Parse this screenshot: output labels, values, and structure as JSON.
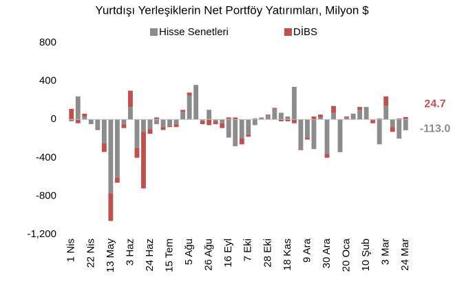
{
  "chart_data": {
    "type": "bar",
    "stacked": true,
    "title": "Yurtdışı Yerleşiklerin Net Portföy Yatırımları, Milyon $",
    "categories": [
      "1 Nis",
      null,
      null,
      "22 Nis",
      null,
      null,
      "13 May",
      null,
      null,
      "3 Haz",
      null,
      null,
      "24 Haz",
      null,
      null,
      "15 Tem",
      null,
      null,
      "5 Ağu",
      null,
      null,
      "26 Ağu",
      null,
      null,
      "16 Eyl",
      null,
      null,
      "7 Eki",
      null,
      null,
      "28 Eki",
      null,
      null,
      "18 Kas",
      null,
      null,
      "9 Ara",
      null,
      null,
      "30 Ara",
      null,
      null,
      "20 Oca",
      null,
      null,
      "10 Şub",
      null,
      null,
      "3 Mar",
      null,
      null,
      "24 Mar"
    ],
    "series": [
      {
        "name": "Hisse Senetleri",
        "color": "#8c8c8c",
        "values": [
          -20,
          240,
          30,
          -50,
          -100,
          -250,
          -770,
          -610,
          -50,
          130,
          -300,
          -130,
          -100,
          -50,
          -80,
          -70,
          -50,
          80,
          250,
          360,
          -20,
          100,
          -20,
          -40,
          -190,
          -280,
          -200,
          -160,
          -60,
          20,
          40,
          110,
          70,
          30,
          340,
          -310,
          -190,
          -310,
          20,
          -360,
          70,
          -330,
          20,
          60,
          100,
          130,
          -10,
          -260,
          140,
          -80,
          -200,
          -113.0
        ],
        "value_labels": [
          null,
          null,
          null,
          null,
          null,
          null,
          null,
          null,
          null,
          null,
          null,
          null,
          null,
          null,
          null,
          null,
          null,
          null,
          null,
          null,
          null,
          null,
          null,
          null,
          null,
          null,
          null,
          null,
          null,
          null,
          null,
          null,
          null,
          null,
          null,
          null,
          null,
          null,
          null,
          null,
          null,
          null,
          null,
          null,
          null,
          null,
          null,
          null,
          null,
          null,
          null,
          "-113.0"
        ]
      },
      {
        "name": "DİBS",
        "color": "#c0504d",
        "values": [
          110,
          -40,
          30,
          0,
          -10,
          -90,
          -290,
          -50,
          -40,
          170,
          -100,
          -590,
          -50,
          20,
          -30,
          -10,
          -30,
          20,
          30,
          0,
          -30,
          -60,
          -30,
          -50,
          20,
          20,
          -60,
          -20,
          10,
          0,
          10,
          10,
          -20,
          -20,
          -40,
          -10,
          -20,
          30,
          30,
          -40,
          70,
          -10,
          10,
          0,
          30,
          0,
          -30,
          10,
          100,
          -50,
          10,
          24.7
        ]
      }
    ],
    "ylim": [
      -1200,
      800
    ],
    "yticks": [
      {
        "value": -1200,
        "label": "-1,200"
      },
      -800,
      -400,
      0,
      400,
      800
    ],
    "legend": "top"
  }
}
